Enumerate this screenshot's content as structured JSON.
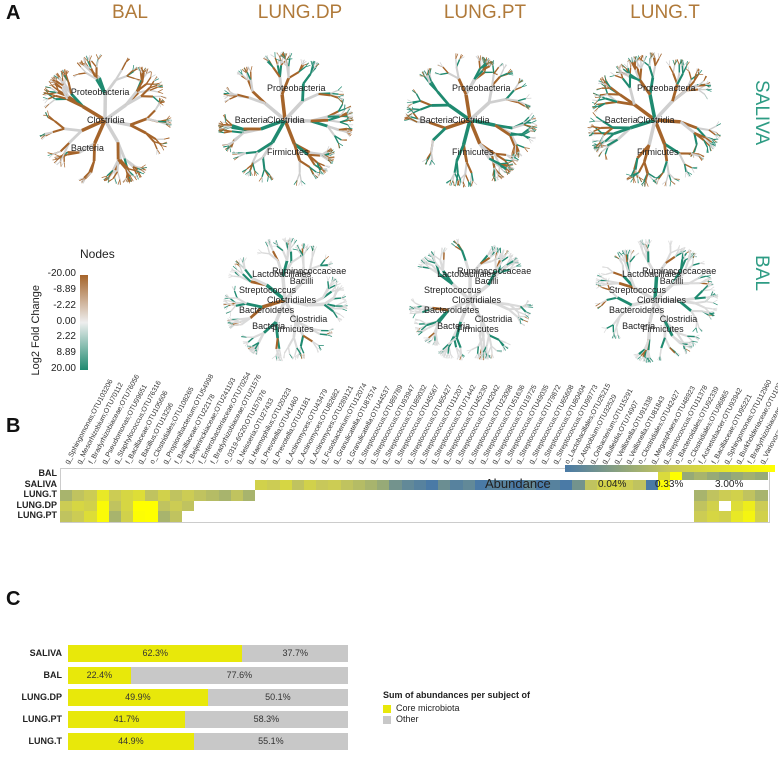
{
  "panelA": {
    "letter": "A",
    "columns": [
      "BAL",
      "LUNG.DP",
      "LUNG.PT",
      "LUNG.T"
    ],
    "rows": [
      "SALIVA",
      "BAL"
    ],
    "tree_labels": {
      "saliva_bal": [
        "Clostridia",
        "Bacteria",
        "Proteobacteria"
      ],
      "saliva_other": [
        "Clostridia",
        "Firmicutes",
        "Bacteria",
        "Proteobacteria"
      ],
      "bal_other": [
        "Clostridiales",
        "Clostridia",
        "Firmicutes",
        "Bacteria",
        "Bacteroidetes",
        "Streptococcus",
        "Lactobacillales",
        "Ruminococcaceae",
        "Bacilli"
      ]
    },
    "legend": {
      "title": "Nodes",
      "axis_label": "Log2 Fold Change",
      "ticks": [
        "-20.00",
        "-8.89",
        "-2.22",
        "0.00",
        "2.22",
        "8.89",
        "20.00"
      ],
      "color_low": "#a5642a",
      "color_mid": "#eeeeee",
      "color_high": "#1f8a70"
    }
  },
  "panelB": {
    "letter": "B",
    "chart_data": {
      "type": "heatmap",
      "columns": [
        "g_Sphingomonas;OTU103206",
        "g_Mesorhizobium;OTU70112",
        "f_Bradyrhizobiaceae;OTU76056",
        "g_Pseudomonas;OTU99651",
        "g_Staphylococcus;OTU76316",
        "f_Bacillaceae;OTU105606",
        "g_Bacillus;OTU13296",
        "o_Clostridiales;OTU108265",
        "g_Propionibacterium;OTU54998",
        "f_Bacillaceae;OTU22178",
        "f_Beijerinckiaceae;OTU241193",
        "f_Enterobacteriaceae;OTU70254",
        "f_Bradyrhizobiaceae;OTU21576",
        "o_0319-6G20;OTU157976",
        "g_Neisseria;OTU27433",
        "g_Haemophilus;OTU20323",
        "g_Prevotella;OTU41460",
        "g_Prevotella;OTU21181",
        "g_Actinomyces;OTU43479",
        "g_Actinomyces;OTU82682",
        "g_Actinomyces;OTU289121",
        "g_Fusobacterium;OTU12074",
        "g_Granulicatella;OTU87574",
        "g_Granulicatella;OTU44537",
        "g_Streptococcus;OTU89789",
        "g_Streptococcus;OTU93947",
        "g_Streptococcus;OTU89032",
        "g_Streptococcus;OTU45567",
        "g_Streptococcus;OTU65427",
        "g_Streptococcus;OTU11207",
        "g_Streptococcus;OTU71442",
        "g_Streptococcus;OTU45230",
        "g_Streptococcus;OTU42042",
        "g_Streptococcus;OTU23098",
        "g_Streptococcus;OTU51636",
        "g_Streptococcus;OTU19725",
        "g_Streptococcus;OTU49035",
        "g_Streptococcus;OTU79872",
        "g_Streptococcus;OTU65608",
        "g_Streptococcus;OTU80404",
        "g_Streptococcus;OTU99773",
        "o_Lactobacillales;OTU25215",
        "g_Atopobium;OTU32529",
        "g_Oribacterium;OTU15291",
        "g_Bulleidia;OTU74907",
        "g_Veillonella;OTU91338",
        "g_Veillonella;OTU81843",
        "o_Clostridiales;OTU42427",
        "g_Megasphaera;OTU48923",
        "g_Streptococcus;OTU11378",
        "o_Bacteroidales;OTU92339",
        "o_Clostridiales;OTU96865",
        "f_Acinetobacter;OTU93942",
        "f_Bacillaceae;OTU95221",
        "g_Sphingomonas;OTU112960",
        "g_Burkholderiaceae;OTU10328",
        "f_Bradyrhizobiaceae;OTU108814",
        "g_Variovorax;OTU48978"
      ],
      "rows": [
        "BAL",
        "SALIVA",
        "LUNG.T",
        "LUNG.DP",
        "LUNG.PT"
      ],
      "values": [
        [
          null,
          null,
          null,
          null,
          null,
          null,
          null,
          null,
          null,
          null,
          null,
          null,
          null,
          null,
          null,
          null,
          null,
          null,
          null,
          null,
          null,
          null,
          null,
          null,
          null,
          null,
          null,
          null,
          null,
          null,
          null,
          null,
          null,
          null,
          null,
          null,
          null,
          null,
          null,
          null,
          null,
          null,
          null,
          null,
          null,
          null,
          null,
          null,
          null,
          0.7,
          3.0,
          0.15,
          0.2,
          0.15,
          0.12,
          0.15,
          0.18,
          0.15
        ],
        [
          null,
          null,
          null,
          null,
          null,
          null,
          null,
          null,
          null,
          null,
          null,
          null,
          null,
          null,
          null,
          null,
          0.5,
          0.4,
          0.6,
          0.3,
          0.5,
          0.35,
          0.4,
          0.3,
          0.25,
          0.2,
          0.15,
          0.08,
          0.06,
          0.05,
          0.04,
          0.07,
          0.05,
          0.06,
          0.04,
          0.05,
          0.05,
          0.04,
          0.06,
          0.04,
          0.05,
          0.03,
          0.08,
          0.3,
          0.5,
          0.6,
          0.4,
          0.3,
          0.04,
          2.5,
          null,
          null,
          null,
          null,
          null,
          null,
          null,
          null
        ],
        [
          0.2,
          0.3,
          0.4,
          1.2,
          0.4,
          0.6,
          0.8,
          0.3,
          0.5,
          0.3,
          0.4,
          0.3,
          0.25,
          0.2,
          0.3,
          0.2,
          null,
          null,
          null,
          null,
          null,
          null,
          null,
          null,
          null,
          null,
          null,
          null,
          null,
          null,
          null,
          null,
          null,
          null,
          null,
          null,
          null,
          null,
          null,
          null,
          null,
          null,
          null,
          null,
          null,
          null,
          null,
          null,
          null,
          null,
          null,
          null,
          0.2,
          0.3,
          0.4,
          0.5,
          0.3,
          0.2
        ],
        [
          0.4,
          0.6,
          0.5,
          2.5,
          0.3,
          0.6,
          3.0,
          3.0,
          0.3,
          0.4,
          0.3,
          null,
          null,
          null,
          null,
          null,
          null,
          null,
          null,
          null,
          null,
          null,
          null,
          null,
          null,
          null,
          null,
          null,
          null,
          null,
          null,
          null,
          null,
          null,
          null,
          null,
          null,
          null,
          null,
          null,
          null,
          null,
          null,
          null,
          null,
          null,
          null,
          null,
          null,
          null,
          null,
          null,
          0.3,
          0.5,
          null,
          0.8,
          1.5,
          0.4
        ],
        [
          0.3,
          0.4,
          0.8,
          2.5,
          0.2,
          0.5,
          2.8,
          3.0,
          0.2,
          0.3,
          null,
          null,
          null,
          null,
          null,
          null,
          null,
          null,
          null,
          null,
          null,
          null,
          null,
          null,
          null,
          null,
          null,
          null,
          null,
          null,
          null,
          null,
          null,
          null,
          null,
          null,
          null,
          null,
          null,
          null,
          null,
          null,
          null,
          null,
          null,
          null,
          null,
          null,
          null,
          null,
          null,
          null,
          0.4,
          0.6,
          0.5,
          1.2,
          2.0,
          0.5
        ]
      ],
      "legend_title": "Abundance",
      "legend_ticks": [
        "0.04%",
        "0.33%",
        "3.00%"
      ],
      "color_low": "#4a7aa6",
      "color_mid": "#c8c85a",
      "color_high": "#ffff00"
    }
  },
  "panelC": {
    "letter": "C",
    "chart_data": {
      "type": "bar",
      "stacked": true,
      "categories": [
        "SALIVA",
        "BAL",
        "LUNG.DP",
        "LUNG.PT",
        "LUNG.T"
      ],
      "series": [
        {
          "name": "Core microbiota",
          "values": [
            62.3,
            22.4,
            49.9,
            41.7,
            44.9
          ],
          "labels": [
            "62.3%",
            "22.4%",
            "49.9%",
            "41.7%",
            "44.9%"
          ],
          "color": "#e8e80a"
        },
        {
          "name": "Other",
          "values": [
            37.7,
            77.6,
            50.1,
            58.3,
            55.1
          ],
          "labels": [
            "37.7%",
            "77.6%",
            "50.1%",
            "58.3%",
            "55.1%"
          ],
          "color": "#c8c8c8"
        }
      ],
      "legend_title": "Sum of abundances per subject of"
    }
  }
}
